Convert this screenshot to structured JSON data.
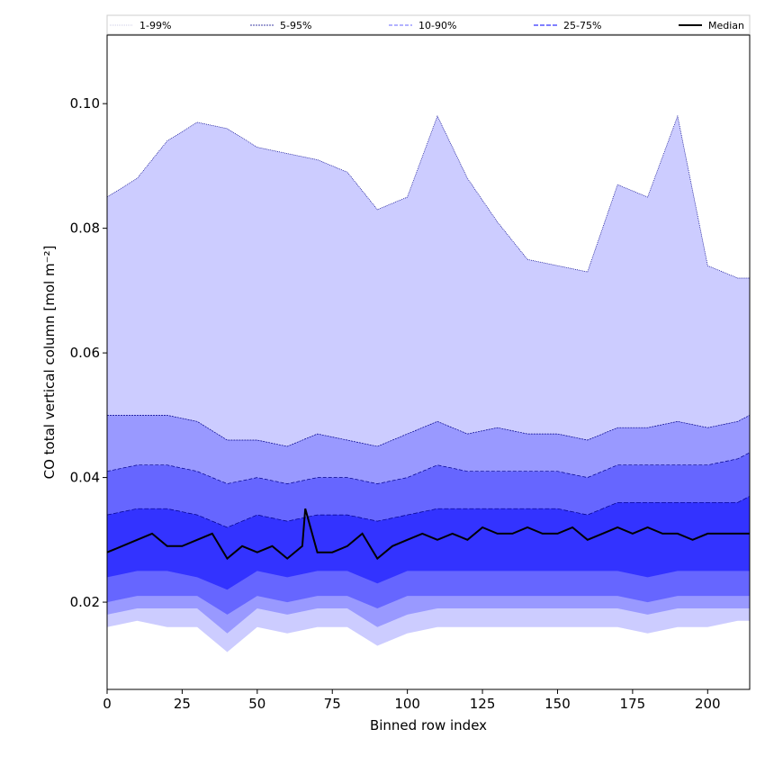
{
  "chart_data": {
    "type": "area",
    "title": "",
    "xlabel": "Binned row index",
    "ylabel": "CO total vertical column [mol m⁻²]",
    "xlim": [
      0,
      214
    ],
    "ylim": [
      0.006,
      0.111
    ],
    "x_ticks": [
      0,
      25,
      50,
      75,
      100,
      125,
      150,
      175,
      200
    ],
    "y_ticks": [
      0.02,
      0.04,
      0.06,
      0.08,
      0.1
    ],
    "x_tick_labels": [
      "0",
      "25",
      "50",
      "75",
      "100",
      "125",
      "150",
      "175",
      "200"
    ],
    "y_tick_labels": [
      "0.02",
      "0.04",
      "0.06",
      "0.08",
      "0.10"
    ],
    "grid": false,
    "legend": {
      "placement": "top",
      "entries": [
        "1-99%",
        "5-95%",
        "10-90%",
        "25-75%",
        "Median"
      ]
    },
    "colors": {
      "band_1_99": "#ccccff",
      "band_5_95": "#9999ff",
      "band_10_90": "#6666ff",
      "band_25_75": "#3333ff",
      "median": "#000000",
      "edge": "#00008b"
    },
    "bands": [
      {
        "name": "1-99%",
        "x": [
          0,
          10,
          20,
          30,
          40,
          50,
          60,
          70,
          80,
          90,
          100,
          110,
          120,
          130,
          140,
          150,
          160,
          170,
          180,
          190,
          200,
          210,
          214
        ],
        "upper": [
          0.085,
          0.088,
          0.094,
          0.097,
          0.096,
          0.093,
          0.092,
          0.091,
          0.089,
          0.083,
          0.085,
          0.098,
          0.088,
          0.081,
          0.075,
          0.074,
          0.073,
          0.087,
          0.085,
          0.098,
          0.074,
          0.072,
          0.072
        ],
        "lower": [
          0.016,
          0.017,
          0.016,
          0.016,
          0.012,
          0.016,
          0.015,
          0.016,
          0.016,
          0.013,
          0.015,
          0.016,
          0.016,
          0.016,
          0.016,
          0.016,
          0.016,
          0.016,
          0.015,
          0.016,
          0.016,
          0.017,
          0.017
        ]
      },
      {
        "name": "5-95%",
        "x": [
          0,
          10,
          20,
          30,
          40,
          50,
          60,
          70,
          80,
          90,
          100,
          110,
          120,
          130,
          140,
          150,
          160,
          170,
          180,
          190,
          200,
          210,
          214
        ],
        "upper": [
          0.05,
          0.05,
          0.05,
          0.049,
          0.046,
          0.046,
          0.045,
          0.047,
          0.046,
          0.045,
          0.047,
          0.049,
          0.047,
          0.048,
          0.047,
          0.047,
          0.046,
          0.048,
          0.048,
          0.049,
          0.048,
          0.049,
          0.05
        ],
        "lower": [
          0.018,
          0.019,
          0.019,
          0.019,
          0.015,
          0.019,
          0.018,
          0.019,
          0.019,
          0.016,
          0.018,
          0.019,
          0.019,
          0.019,
          0.019,
          0.019,
          0.019,
          0.019,
          0.018,
          0.019,
          0.019,
          0.019,
          0.019
        ]
      },
      {
        "name": "10-90%",
        "x": [
          0,
          10,
          20,
          30,
          40,
          50,
          60,
          70,
          80,
          90,
          100,
          110,
          120,
          130,
          140,
          150,
          160,
          170,
          180,
          190,
          200,
          210,
          214
        ],
        "upper": [
          0.041,
          0.042,
          0.042,
          0.041,
          0.039,
          0.04,
          0.039,
          0.04,
          0.04,
          0.039,
          0.04,
          0.042,
          0.041,
          0.041,
          0.041,
          0.041,
          0.04,
          0.042,
          0.042,
          0.042,
          0.042,
          0.043,
          0.044
        ],
        "lower": [
          0.02,
          0.021,
          0.021,
          0.021,
          0.018,
          0.021,
          0.02,
          0.021,
          0.021,
          0.019,
          0.021,
          0.021,
          0.021,
          0.021,
          0.021,
          0.021,
          0.021,
          0.021,
          0.02,
          0.021,
          0.021,
          0.021,
          0.021
        ]
      },
      {
        "name": "25-75%",
        "x": [
          0,
          10,
          20,
          30,
          40,
          50,
          60,
          70,
          80,
          90,
          100,
          110,
          120,
          130,
          140,
          150,
          160,
          170,
          180,
          190,
          200,
          210,
          214
        ],
        "upper": [
          0.034,
          0.035,
          0.035,
          0.034,
          0.032,
          0.034,
          0.033,
          0.034,
          0.034,
          0.033,
          0.034,
          0.035,
          0.035,
          0.035,
          0.035,
          0.035,
          0.034,
          0.036,
          0.036,
          0.036,
          0.036,
          0.036,
          0.037
        ],
        "lower": [
          0.024,
          0.025,
          0.025,
          0.024,
          0.022,
          0.025,
          0.024,
          0.025,
          0.025,
          0.023,
          0.025,
          0.025,
          0.025,
          0.025,
          0.025,
          0.025,
          0.025,
          0.025,
          0.024,
          0.025,
          0.025,
          0.025,
          0.025
        ]
      }
    ],
    "median": {
      "name": "Median",
      "x": [
        0,
        5,
        10,
        15,
        20,
        25,
        30,
        35,
        40,
        45,
        50,
        55,
        60,
        65,
        66,
        70,
        75,
        80,
        85,
        90,
        95,
        100,
        105,
        110,
        115,
        120,
        125,
        130,
        135,
        140,
        145,
        150,
        155,
        160,
        165,
        170,
        175,
        180,
        185,
        190,
        195,
        200,
        205,
        210,
        214
      ],
      "y": [
        0.028,
        0.029,
        0.03,
        0.031,
        0.029,
        0.029,
        0.03,
        0.031,
        0.027,
        0.029,
        0.028,
        0.029,
        0.027,
        0.029,
        0.035,
        0.028,
        0.028,
        0.029,
        0.031,
        0.027,
        0.029,
        0.03,
        0.031,
        0.03,
        0.031,
        0.03,
        0.032,
        0.031,
        0.031,
        0.032,
        0.031,
        0.031,
        0.032,
        0.03,
        0.031,
        0.032,
        0.031,
        0.032,
        0.031,
        0.031,
        0.03,
        0.031,
        0.031,
        0.031,
        0.031
      ]
    }
  }
}
